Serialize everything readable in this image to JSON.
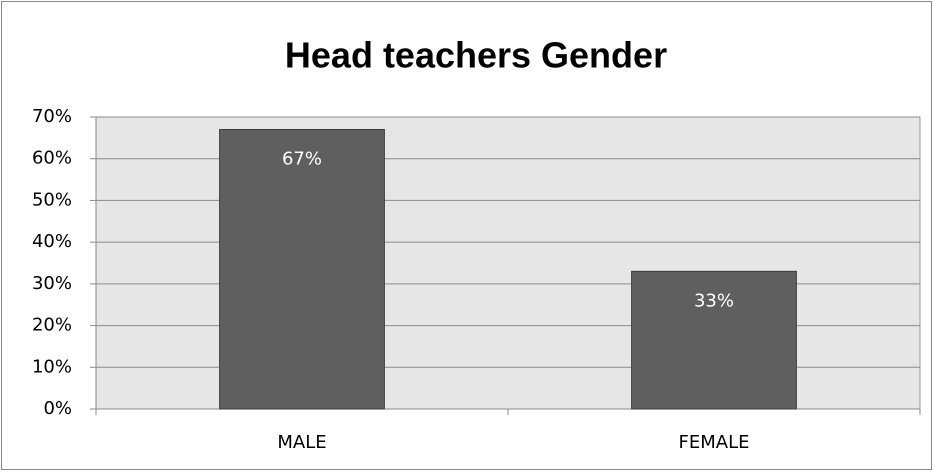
{
  "chart_data": {
    "type": "bar",
    "title": "Head teachers Gender",
    "categories": [
      "MALE",
      "FEMALE"
    ],
    "values": [
      67,
      33
    ],
    "value_labels": [
      "67%",
      "33%"
    ],
    "color": "#5f5f5f",
    "ylim": [
      0,
      70
    ],
    "yticks": [
      {
        "value": 0,
        "label": "0%"
      },
      {
        "value": 10,
        "label": "10%"
      },
      {
        "value": 20,
        "label": "20%"
      },
      {
        "value": 30,
        "label": "30%"
      },
      {
        "value": 40,
        "label": "40%"
      },
      {
        "value": 50,
        "label": "50%"
      },
      {
        "value": 60,
        "label": "60%"
      },
      {
        "value": 70,
        "label": "70%"
      }
    ],
    "grid": true
  }
}
